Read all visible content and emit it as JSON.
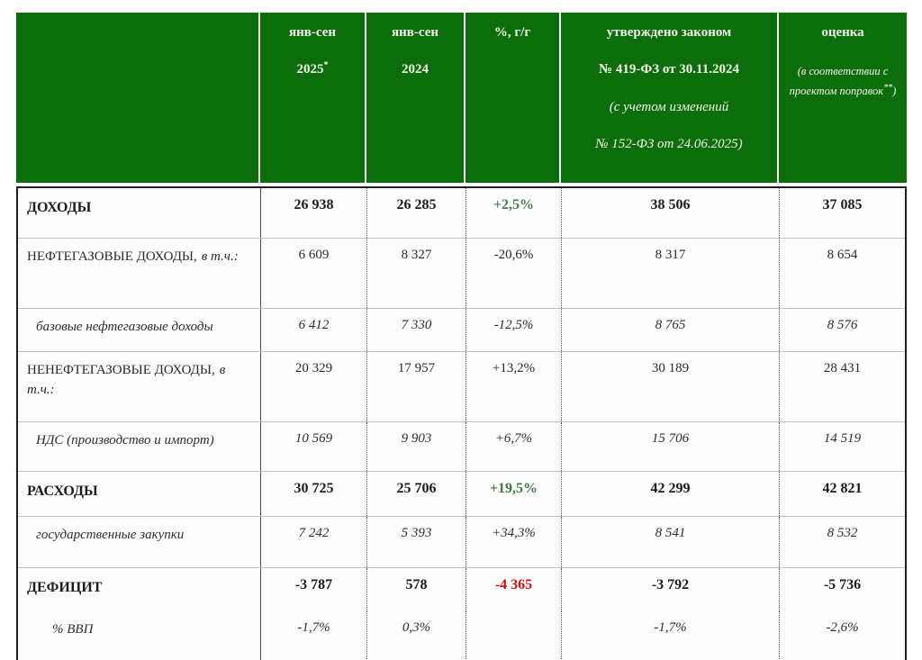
{
  "header": {
    "c1": {
      "line1": "янв-сен",
      "line2": "2025",
      "sup": "*"
    },
    "c2": {
      "line1": "янв-сен",
      "line2": "2024"
    },
    "c3": {
      "label": "%, г/г"
    },
    "c4": {
      "lines": [
        "утверждено законом",
        "№ 419-ФЗ от 30.11.2024",
        "(с учетом изменений",
        "№ 152-ФЗ от 24.06.2025)"
      ]
    },
    "c5": {
      "line1": "оценка",
      "note_prefix": "(в соответствии с проектом поправок",
      "note_sup": "**",
      "note_suffix": ")"
    }
  },
  "rows": [
    {
      "label": "ДОХОДЫ",
      "values": [
        "26 938",
        "26 285",
        "+2,5%",
        "38 506",
        "37 085"
      ]
    },
    {
      "label": "НЕФТЕГАЗОВЫЕ ДОХОДЫ,",
      "suffix": "в т.ч.:",
      "values": [
        "6 609",
        "8 327",
        "-20,6%",
        "8 317",
        "8 654"
      ]
    },
    {
      "label": "базовые нефтегазовые доходы",
      "values": [
        "6 412",
        "7 330",
        "-12,5%",
        "8 765",
        "8 576"
      ]
    },
    {
      "label": "НЕНЕФТЕГАЗОВЫЕ ДОХОДЫ,",
      "suffix": "в т.ч.:",
      "values": [
        "20 329",
        "17 957",
        "+13,2%",
        "30 189",
        "28 431"
      ]
    },
    {
      "label": "НДС (производство и импорт)",
      "values": [
        "10 569",
        "9 903",
        "+6,7%",
        "15 706",
        "14 519"
      ]
    },
    {
      "label": "РАСХОДЫ",
      "values": [
        "30 725",
        "25 706",
        "+19,5%",
        "42 299",
        "42 821"
      ]
    },
    {
      "label": "государственные закупки",
      "values": [
        "7 242",
        "5 393",
        "+34,3%",
        "8 541",
        "8 532"
      ]
    },
    {
      "label": "ДЕФИЦИТ",
      "values": [
        "-3 787",
        "578",
        "-4 365",
        "-3 792",
        "-5 736"
      ]
    },
    {
      "label": "% ВВП",
      "values": [
        "-1,7%",
        "0,3%",
        "",
        "-1,7%",
        "-2,6%"
      ]
    }
  ],
  "colors": {
    "header_bg": "#0b6e0b",
    "header_text": "#f6f6ec",
    "positive_green": "#3f7d45",
    "positive_green_light": "#8fae8f",
    "negative_red": "#c9222c",
    "negative_red_light": "#cf7070",
    "text_dark": "#1c1c1c"
  }
}
